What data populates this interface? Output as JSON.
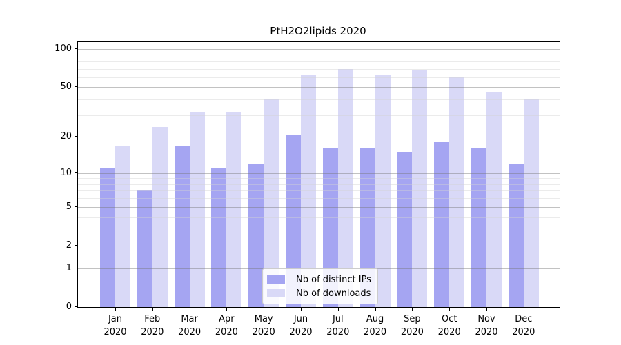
{
  "title": "PtH2O2lipids 2020",
  "chart_data": {
    "type": "bar",
    "title": "PtH2O2lipids 2020",
    "x_axis": {
      "months": [
        "Jan",
        "Feb",
        "Mar",
        "Apr",
        "May",
        "Jun",
        "Jul",
        "Aug",
        "Sep",
        "Oct",
        "Nov",
        "Dec"
      ],
      "year": "2020"
    },
    "y_axis": {
      "scale": "log10(value+1)",
      "ticks": [
        0,
        1,
        2,
        5,
        10,
        20,
        50,
        100
      ],
      "minor_gridlines": [
        3,
        4,
        6,
        7,
        8,
        9,
        30,
        40,
        60,
        70,
        80,
        90
      ],
      "range": [
        0,
        112
      ]
    },
    "series": [
      {
        "name": "Nb of distinct IPs",
        "color": "#a5a5f2",
        "values": [
          11,
          7,
          17,
          11,
          12,
          21,
          16,
          16,
          15,
          18,
          16,
          12
        ]
      },
      {
        "name": "Nb of downloads",
        "color": "#d9d9f7",
        "values": [
          17,
          24,
          32,
          32,
          40,
          63,
          70,
          62,
          69,
          60,
          46,
          40
        ]
      }
    ],
    "grid": true,
    "legend": {
      "position": "bottom-center-inside",
      "entries": [
        "Nb of distinct IPs",
        "Nb of downloads"
      ]
    }
  },
  "colors": {
    "axis": "#000000",
    "major_gridline": "#c2c2c2",
    "minor_gridline": "#ececec",
    "legend_border": "#cccccc"
  }
}
